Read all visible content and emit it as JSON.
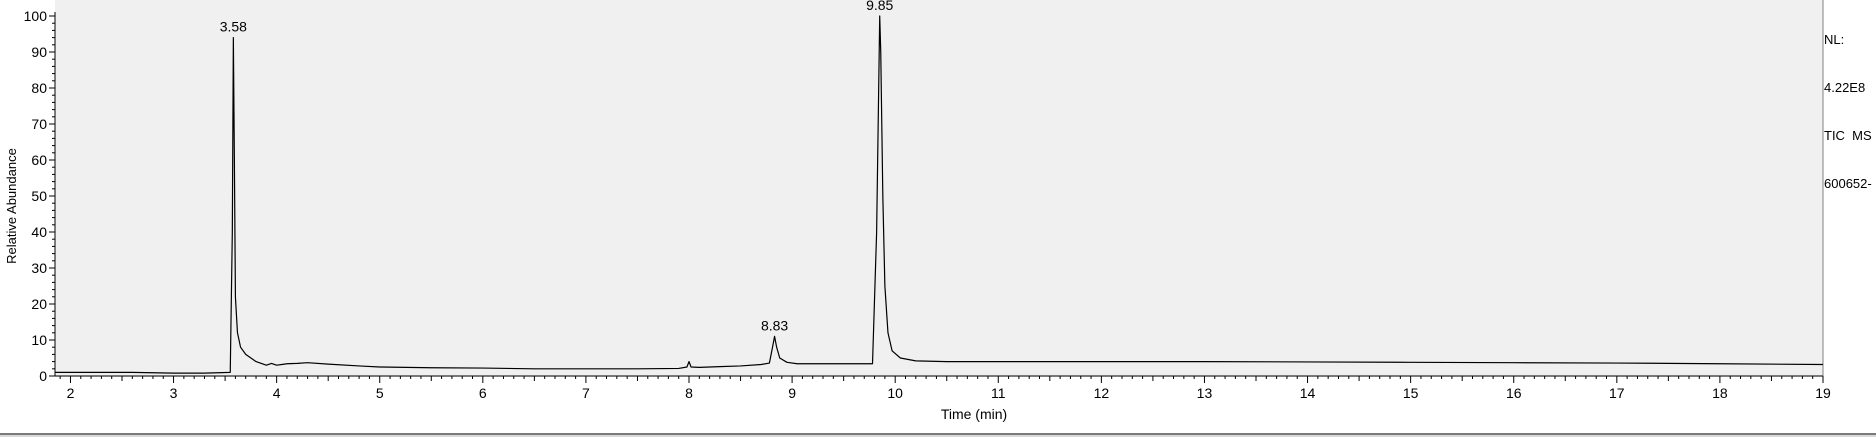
{
  "chart_data": {
    "type": "line",
    "xlabel": "Time (min)",
    "ylabel": "Relative Abundance",
    "xlim": [
      1.85,
      19.0
    ],
    "ylim": [
      0,
      100
    ],
    "x_ticks": [
      2,
      3,
      4,
      5,
      6,
      7,
      8,
      9,
      10,
      11,
      12,
      13,
      14,
      15,
      16,
      17,
      18,
      19
    ],
    "y_ticks": [
      0,
      10,
      20,
      30,
      40,
      50,
      60,
      70,
      80,
      90,
      100
    ],
    "grid": false,
    "line_color": "#000000",
    "plot_background": "#f0f0f0",
    "peak_labels": [
      {
        "x": 3.58,
        "y": 94,
        "label": "3.58"
      },
      {
        "x": 8.83,
        "y": 11,
        "label": "8.83"
      },
      {
        "x": 9.85,
        "y": 100,
        "label": "9.85"
      }
    ],
    "series": [
      {
        "x": [
          1.85,
          2.2,
          2.6,
          3.0,
          3.3,
          3.55,
          3.57,
          3.58,
          3.59,
          3.6,
          3.62,
          3.65,
          3.7,
          3.8,
          3.9,
          3.95,
          4.0,
          4.05,
          4.1,
          4.2,
          4.3,
          4.5,
          4.8,
          5.0,
          5.5,
          6.0,
          6.5,
          7.0,
          7.5,
          7.9,
          7.98,
          8.0,
          8.02,
          8.1,
          8.3,
          8.5,
          8.7,
          8.78,
          8.81,
          8.83,
          8.85,
          8.88,
          8.95,
          9.05,
          9.2,
          9.5,
          9.78,
          9.82,
          9.84,
          9.85,
          9.86,
          9.88,
          9.9,
          9.93,
          9.97,
          10.05,
          10.2,
          10.5,
          11.0,
          12.0,
          13.0,
          14.0,
          15.0,
          16.0,
          17.0,
          18.0,
          19.0
        ],
        "y": [
          1.0,
          1.0,
          1.0,
          0.8,
          0.8,
          1.0,
          40,
          94,
          60,
          22,
          12,
          8,
          6,
          4,
          3.0,
          3.5,
          3.0,
          3.2,
          3.4,
          3.5,
          3.7,
          3.3,
          2.8,
          2.5,
          2.3,
          2.2,
          2.0,
          2.0,
          2.0,
          2.1,
          2.5,
          4.0,
          2.5,
          2.4,
          2.6,
          2.8,
          3.2,
          3.6,
          8,
          11,
          8,
          5,
          3.8,
          3.4,
          3.4,
          3.4,
          3.4,
          40,
          80,
          100,
          90,
          50,
          25,
          12,
          7,
          5,
          4.2,
          4.0,
          4.0,
          4.0,
          4.0,
          3.9,
          3.8,
          3.7,
          3.6,
          3.4,
          3.2
        ]
      }
    ]
  },
  "side_info": {
    "line1": "NL:",
    "line2": "4.22E8",
    "line3": "TIC  MS",
    "line4": "600652-"
  }
}
